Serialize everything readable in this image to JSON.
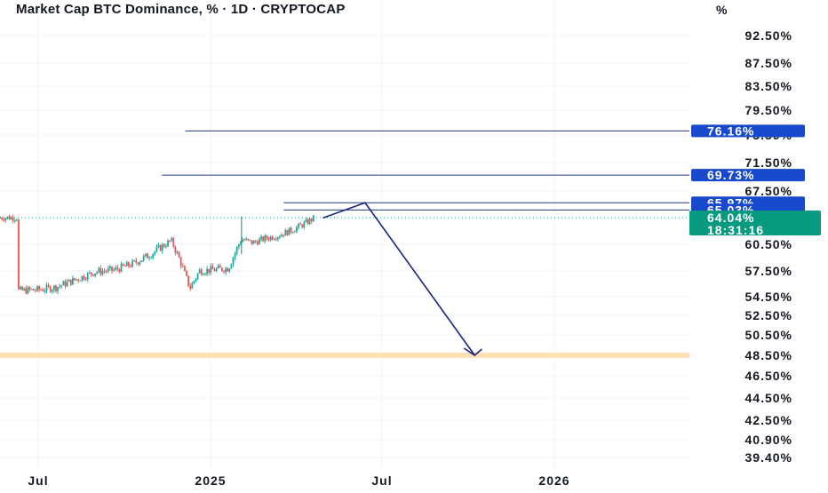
{
  "header": {
    "title": "Market Cap BTC Dominance, % · 1D · CRYPTOCAP",
    "unit": "%"
  },
  "colors": {
    "grid": "#f0f3fa",
    "up": "#26a69a",
    "down": "#ef5350",
    "level_line": "#1e3a8a",
    "level_badge": "#1848cc",
    "price_badge": "#089981",
    "zone": "#ffe0b2",
    "projection": "#1a237e"
  },
  "chart_data": {
    "type": "candlestick",
    "title": "Market Cap BTC Dominance, % · 1D · CRYPTOCAP",
    "y_unit": "%",
    "y_ticks": [
      "92.50%",
      "87.50%",
      "83.50%",
      "79.50%",
      "75.50%",
      "71.50%",
      "67.50%",
      "60.50%",
      "57.50%",
      "54.50%",
      "52.50%",
      "50.50%",
      "48.50%",
      "46.50%",
      "44.50%",
      "42.50%",
      "40.90%",
      "39.40%"
    ],
    "x_ticks": [
      "Jul",
      "2025",
      "Jul",
      "2026"
    ],
    "price_series_approx": [
      {
        "x": "2024-06-10",
        "close": 55.2
      },
      {
        "x": "2024-07-01",
        "close": 55.3
      },
      {
        "x": "2024-07-20",
        "close": 55.6
      },
      {
        "x": "2024-08-10",
        "close": 56.5
      },
      {
        "x": "2024-08-31",
        "close": 57.4
      },
      {
        "x": "2024-09-20",
        "close": 57.6
      },
      {
        "x": "2024-10-10",
        "close": 58.3
      },
      {
        "x": "2024-10-31",
        "close": 59.5
      },
      {
        "x": "2024-11-20",
        "close": 61.0
      },
      {
        "x": "2024-11-30",
        "close": 58.5
      },
      {
        "x": "2024-12-10",
        "close": 55.5
      },
      {
        "x": "2024-12-20",
        "close": 57.5
      },
      {
        "x": "2025-01-01",
        "close": 57.6
      },
      {
        "x": "2025-01-20",
        "close": 57.8
      },
      {
        "x": "2025-02-03",
        "close": 61.2
      },
      {
        "x": "2025-02-15",
        "close": 60.7
      },
      {
        "x": "2025-03-01",
        "close": 61.3
      },
      {
        "x": "2025-03-15",
        "close": 61.7
      },
      {
        "x": "2025-03-31",
        "close": 62.5
      },
      {
        "x": "2025-04-15",
        "close": 63.5
      },
      {
        "x": "2025-04-22",
        "close": 64.04
      }
    ],
    "horizontal_levels": [
      {
        "value": 76.16,
        "label": "76.16%"
      },
      {
        "value": 69.73,
        "label": "69.73%"
      },
      {
        "value": 65.97,
        "label": "65.97%"
      },
      {
        "value": 65.03,
        "label": "65.03%"
      }
    ],
    "last_price": {
      "value": 64.04,
      "label": "64.04%",
      "countdown": "18:31:16"
    },
    "support_zone": {
      "value": 48.5
    },
    "projection_path": [
      {
        "x": "2025-05-01",
        "y": 64.0
      },
      {
        "x": "2025-06-15",
        "y": 65.97
      },
      {
        "x": "2025-10-10",
        "y": 48.5
      }
    ]
  }
}
